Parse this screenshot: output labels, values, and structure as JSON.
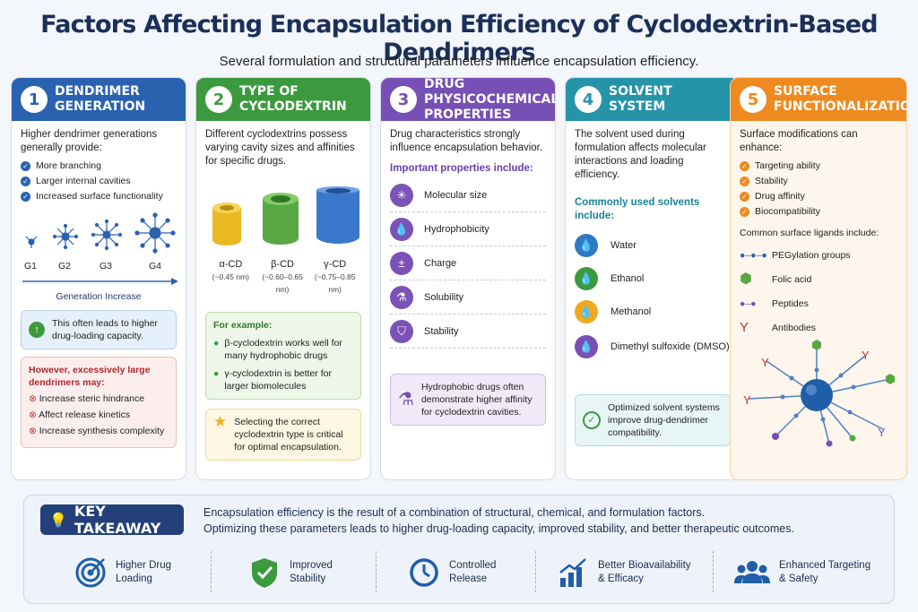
{
  "title": "Factors Affecting Encapsulation Efficiency of Cyclodextrin-Based Dendrimers",
  "subtitle": "Several formulation and structural parameters influence encapsulation efficiency.",
  "colors": {
    "c1": "#2a62b0",
    "c2": "#3c9a3e",
    "c3": "#7650b4",
    "c4": "#2594a9",
    "c5": "#ee8a1f"
  },
  "card1": {
    "num": "1",
    "title1": "DENDRIMER",
    "title2": "GENERATION",
    "lead": "Higher dendrimer generations generally provide:",
    "items": [
      "More branching",
      "Larger internal cavities",
      "Increased surface functionality"
    ],
    "gens": [
      "G1",
      "G2",
      "G3",
      "G4"
    ],
    "axis": "Generation Increase",
    "note": "This often leads to higher drug-loading capacity.",
    "warn_title": "However, excessively large dendrimers may:",
    "warn_items": [
      "Increase steric hindrance",
      "Affect release kinetics",
      "Increase synthesis complexity"
    ]
  },
  "card2": {
    "num": "2",
    "title1": "TYPE OF",
    "title2": "CYCLODEXTRIN",
    "lead": "Different cyclodextrins possess varying cavity sizes and affinities for specific drugs.",
    "cds": [
      {
        "name": "α-CD",
        "size": "(~0.45 nm)"
      },
      {
        "name": "β-CD",
        "size": "(~0.60–0.65 nm)"
      },
      {
        "name": "γ-CD",
        "size": "(~0.75–0.85 nm)"
      }
    ],
    "example_title": "For example:",
    "examples": [
      "β-cyclodextrin works well for many hydrophobic drugs",
      "γ-cyclodextrin is better for larger biomolecules"
    ],
    "tip": "Selecting the correct cyclodextrin type is critical for optimal encapsulation."
  },
  "card3": {
    "num": "3",
    "title1": "DRUG PHYSICOCHEMICAL",
    "title2": "PROPERTIES",
    "lead": "Drug characteristics strongly influence encapsulation behavior.",
    "sub": "Important properties include:",
    "props": [
      "Molecular size",
      "Hydrophobicity",
      "Charge",
      "Solubility",
      "Stability"
    ],
    "note": "Hydrophobic drugs often demonstrate higher affinity for cyclodextrin cavities."
  },
  "card4": {
    "num": "4",
    "title1": "SOLVENT",
    "title2": "SYSTEM",
    "lead": "The solvent used during formulation affects molecular interactions and loading efficiency.",
    "sub": "Commonly used solvents include:",
    "solvents": [
      "Water",
      "Ethanol",
      "Methanol",
      "Dimethyl sulfoxide (DMSO)"
    ],
    "note": "Optimized solvent systems improve drug-dendrimer compatibility."
  },
  "card5": {
    "num": "5",
    "title1": "SURFACE",
    "title2": "FUNCTIONALIZATION",
    "lead": "Surface modifications can enhance:",
    "items": [
      "Targeting ability",
      "Stability",
      "Drug affinity",
      "Biocompatibility"
    ],
    "sub": "Common surface ligands include:",
    "ligands": [
      "PEGylation groups",
      "Folic acid",
      "Peptides",
      "Antibodies"
    ]
  },
  "takeaway": {
    "label": "KEY TAKEAWAY",
    "line1": "Encapsulation efficiency is the result of a combination of structural, chemical, and formulation factors.",
    "line2": "Optimizing these parameters leads to higher drug-loading capacity, improved stability, and better therapeutic outcomes.",
    "outcomes": [
      {
        "l1": "Higher Drug",
        "l2": "Loading",
        "icon": "target-icon"
      },
      {
        "l1": "Improved",
        "l2": "Stability",
        "icon": "shield-check-icon"
      },
      {
        "l1": "Controlled",
        "l2": "Release",
        "icon": "clock-icon"
      },
      {
        "l1": "Better Bioavailability",
        "l2": "& Efficacy",
        "icon": "bar-chart-icon"
      },
      {
        "l1": "Enhanced Targeting",
        "l2": "& Safety",
        "icon": "people-icon"
      }
    ]
  }
}
